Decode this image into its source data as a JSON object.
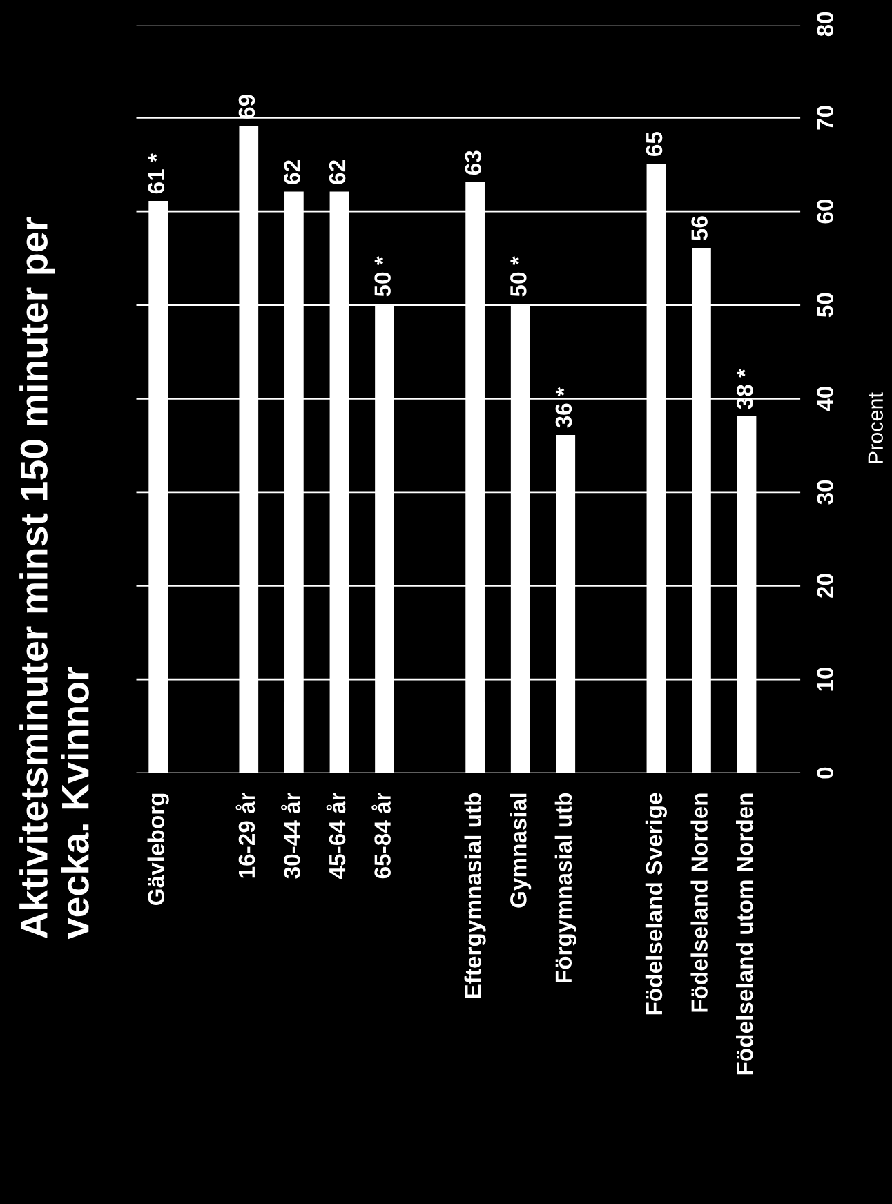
{
  "chart_data": {
    "type": "bar",
    "title": "Aktivitetsminuter minst 150 minuter per\nvecka. Kvinnor",
    "ylabel": "Procent",
    "categories": [
      "Gävleborg",
      null,
      "16-29 år",
      "30-44 år",
      "45-64 år",
      "65-84 år",
      null,
      "Eftergymnasial utb",
      "Gymnasial",
      "Förgymnasial utb",
      null,
      "Födelseland Sverige",
      "Födelseland Norden",
      "Födelseland utom Norden"
    ],
    "values": [
      61,
      null,
      69,
      62,
      62,
      50,
      null,
      63,
      50,
      36,
      null,
      65,
      56,
      38
    ],
    "value_labels": [
      "61 *",
      null,
      "69",
      "62",
      "62",
      "50 *",
      null,
      "63",
      "50 *",
      "36 *",
      null,
      "65",
      "56",
      "38 *"
    ],
    "color": "#ffffff",
    "ylim": [
      0,
      80
    ],
    "yticks": [
      0,
      10,
      20,
      30,
      40,
      50,
      60,
      70,
      80
    ],
    "grid": "y"
  }
}
